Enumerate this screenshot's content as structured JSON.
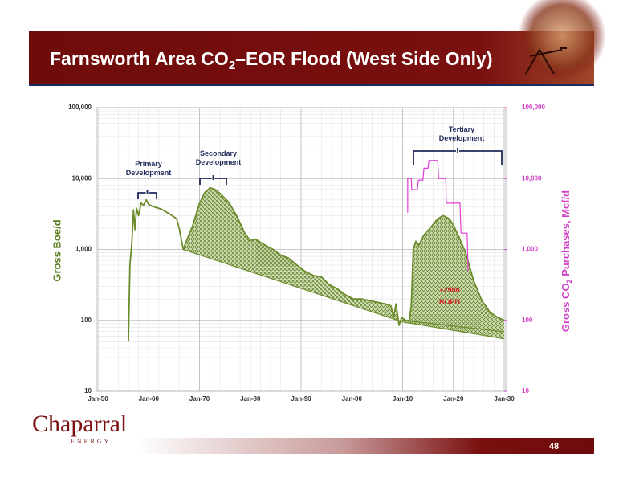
{
  "slide": {
    "title_parts": [
      "Farnsworth Area CO",
      "2",
      "–EOR Flood (West Side Only)"
    ],
    "logo": {
      "name": "Chaparral",
      "sub": "ENERGY"
    },
    "page_number": 48
  },
  "chart_data": {
    "type": "line",
    "log_scale": true,
    "grid": true,
    "y_label": "Gross Boe/d",
    "y2_label_parts": [
      "Gross CO",
      "2",
      " Purchases, Mcf/d"
    ],
    "xlim": [
      1950,
      2030
    ],
    "xticks": [
      {
        "value": 1950,
        "label": "Jan-50"
      },
      {
        "value": 1960,
        "label": "Jan-60"
      },
      {
        "value": 1970,
        "label": "Jan-70"
      },
      {
        "value": 1980,
        "label": "Jan-80"
      },
      {
        "value": 1990,
        "label": "Jan-90"
      },
      {
        "value": 2000,
        "label": "Jan-00"
      },
      {
        "value": 2010,
        "label": "Jan-10"
      },
      {
        "value": 2020,
        "label": "Jan-20"
      },
      {
        "value": 2030,
        "label": "Jan-30"
      }
    ],
    "ylim": [
      10,
      100000
    ],
    "yticks": [
      10,
      100,
      {
        "value": 1000,
        "label": "1,000"
      },
      {
        "value": 10000,
        "label": "10,000"
      },
      {
        "value": 100000,
        "label": "100,000"
      }
    ],
    "y2lim": [
      10,
      100000
    ],
    "y2ticks": [
      10,
      100,
      {
        "value": 1000,
        "label": "1,000"
      },
      {
        "value": 10000,
        "label": "10,000"
      },
      {
        "value": 100000,
        "label": "100,000"
      }
    ],
    "series": [
      {
        "color": "#6b8c2a",
        "x": [
          1956.0,
          1956.3,
          1956.7,
          1957.0,
          1957.3,
          1957.6,
          1958.0,
          1958.5,
          1959.0,
          1959.5,
          1960.0,
          1961.0,
          1962.5,
          1964.0,
          1965.5,
          1966.0,
          1966.8,
          1967.4,
          1968.7,
          1969.9,
          1971.0,
          1972.1,
          1973.1,
          1974.2,
          1975.8,
          1977.4,
          1978.9,
          1980.0,
          1981.0,
          1982.9,
          1984.5,
          1986.0,
          1987.6,
          1989.2,
          1990.8,
          1992.4,
          1994.0,
          1995.5,
          1997.1,
          1998.7,
          2000.3,
          2001.9,
          2003.4,
          2005.0,
          2006.6,
          2007.7,
          2008.2,
          2008.7,
          2009.3,
          2009.8,
          2010.6,
          2011.3,
          2011.7,
          2012.1,
          2012.6,
          2013.2,
          2014.2,
          2015.3,
          2016.1,
          2016.9,
          2018.0,
          2019.2,
          2020.0,
          2021.1,
          2022.4,
          2024.0,
          2025.6,
          2027.2,
          2028.7,
          2030.0
        ],
        "values": [
          50,
          600,
          1300,
          3600,
          1900,
          3800,
          3000,
          4500,
          4200,
          5000,
          4300,
          4000,
          3700,
          3200,
          2700,
          2000,
          1000,
          1300,
          2200,
          4300,
          6300,
          7400,
          7000,
          6000,
          4600,
          2900,
          1700,
          1330,
          1400,
          1150,
          1000,
          830,
          750,
          600,
          490,
          430,
          410,
          320,
          280,
          230,
          200,
          200,
          190,
          180,
          170,
          160,
          110,
          170,
          85,
          110,
          100,
          100,
          160,
          1000,
          1300,
          1150,
          1600,
          1950,
          2300,
          2700,
          3000,
          2700,
          2200,
          1500,
          900,
          360,
          190,
          130,
          110,
          100
        ]
      },
      {
        "color": "#6b8c2a",
        "x": [
          1966.8,
          2010.0,
          2030.0
        ],
        "values": [
          1000,
          95,
          55
        ]
      },
      {
        "color": "#6b8c2a",
        "x": [
          2010.0,
          2030.0
        ],
        "values": [
          100,
          69
        ]
      },
      {
        "color": "#e33fd6",
        "axis": "y2",
        "x": [
          2011.0,
          2011.0,
          2011.7,
          2011.8,
          2012.9,
          2013.1,
          2014.0,
          2014.2,
          2015.0,
          2015.2,
          2016.9,
          2017.1,
          2018.5,
          2018.6,
          2021.3,
          2021.5,
          2022.7,
          2022.9
        ],
        "values": [
          3300,
          10000,
          10000,
          7000,
          7000,
          9500,
          9500,
          14000,
          14000,
          18000,
          18000,
          10000,
          10000,
          4500,
          4500,
          1700,
          1700,
          500
        ]
      }
    ],
    "annotations": [
      {
        "lines": [
          "Primary",
          "Development"
        ],
        "color": "#1f2a5a"
      },
      {
        "lines": [
          "Secondary",
          "Development"
        ],
        "color": "#1f2a5a"
      },
      {
        "lines": [
          "Tertiary",
          "Development"
        ],
        "color": "#1f2a5a"
      },
      {
        "lines": [
          "+2900",
          "BOPD"
        ],
        "color": "#d42020"
      }
    ]
  }
}
